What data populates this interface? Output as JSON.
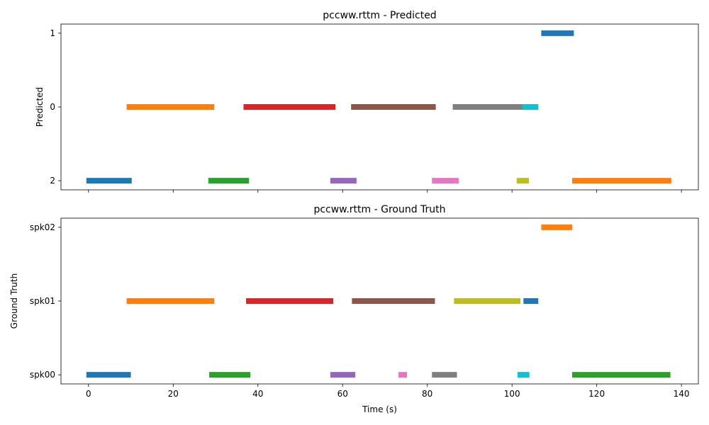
{
  "chart_data": [
    {
      "type": "timeline",
      "title": "pccww.rttm - Predicted",
      "ylabel": "Predicted",
      "xlabel": "",
      "xlim": [
        -6.5,
        144
      ],
      "xticks": [
        0,
        20,
        40,
        60,
        80,
        100,
        120,
        140
      ],
      "show_xtick_labels": false,
      "rows": [
        "2",
        "0",
        "1"
      ],
      "segments": [
        {
          "row": "2",
          "start": -0.5,
          "end": 10.2,
          "color": "#1f77b4"
        },
        {
          "row": "0",
          "start": 9.0,
          "end": 29.7,
          "color": "#ff7f0e"
        },
        {
          "row": "2",
          "start": 28.3,
          "end": 37.9,
          "color": "#2ca02c"
        },
        {
          "row": "0",
          "start": 36.6,
          "end": 58.3,
          "color": "#d62728"
        },
        {
          "row": "2",
          "start": 57.1,
          "end": 63.3,
          "color": "#9467bd"
        },
        {
          "row": "0",
          "start": 62.0,
          "end": 82.0,
          "color": "#8c564b"
        },
        {
          "row": "2",
          "start": 81.1,
          "end": 87.4,
          "color": "#e377c2"
        },
        {
          "row": "0",
          "start": 86.0,
          "end": 102.4,
          "color": "#7f7f7f"
        },
        {
          "row": "2",
          "start": 101.1,
          "end": 104.0,
          "color": "#bcbd22"
        },
        {
          "row": "0",
          "start": 102.4,
          "end": 106.2,
          "color": "#17becf"
        },
        {
          "row": "1",
          "start": 106.9,
          "end": 114.6,
          "color": "#1f77b4"
        },
        {
          "row": "2",
          "start": 114.2,
          "end": 137.6,
          "color": "#ff7f0e"
        }
      ]
    },
    {
      "type": "timeline",
      "title": "pccww.rttm - Ground Truth",
      "ylabel": "Ground Truth",
      "xlabel": "Time (s)",
      "xlim": [
        -6.5,
        144
      ],
      "xticks": [
        0,
        20,
        40,
        60,
        80,
        100,
        120,
        140
      ],
      "show_xtick_labels": true,
      "rows": [
        "spk00",
        "spk01",
        "spk02"
      ],
      "segments": [
        {
          "row": "spk00",
          "start": -0.5,
          "end": 10.0,
          "color": "#1f77b4"
        },
        {
          "row": "spk01",
          "start": 9.0,
          "end": 29.7,
          "color": "#ff7f0e"
        },
        {
          "row": "spk00",
          "start": 28.5,
          "end": 38.2,
          "color": "#2ca02c"
        },
        {
          "row": "spk01",
          "start": 37.2,
          "end": 57.8,
          "color": "#d62728"
        },
        {
          "row": "spk00",
          "start": 57.1,
          "end": 63.0,
          "color": "#9467bd"
        },
        {
          "row": "spk01",
          "start": 62.2,
          "end": 81.8,
          "color": "#8c564b"
        },
        {
          "row": "spk00",
          "start": 73.2,
          "end": 75.2,
          "color": "#e377c2"
        },
        {
          "row": "spk00",
          "start": 81.1,
          "end": 87.0,
          "color": "#7f7f7f"
        },
        {
          "row": "spk01",
          "start": 86.3,
          "end": 102.0,
          "color": "#bcbd22"
        },
        {
          "row": "spk00",
          "start": 101.3,
          "end": 104.1,
          "color": "#17becf"
        },
        {
          "row": "spk01",
          "start": 102.7,
          "end": 106.2,
          "color": "#1f77b4"
        },
        {
          "row": "spk02",
          "start": 106.9,
          "end": 114.2,
          "color": "#ff7f0e"
        },
        {
          "row": "spk00",
          "start": 114.2,
          "end": 137.4,
          "color": "#2ca02c"
        }
      ]
    }
  ]
}
